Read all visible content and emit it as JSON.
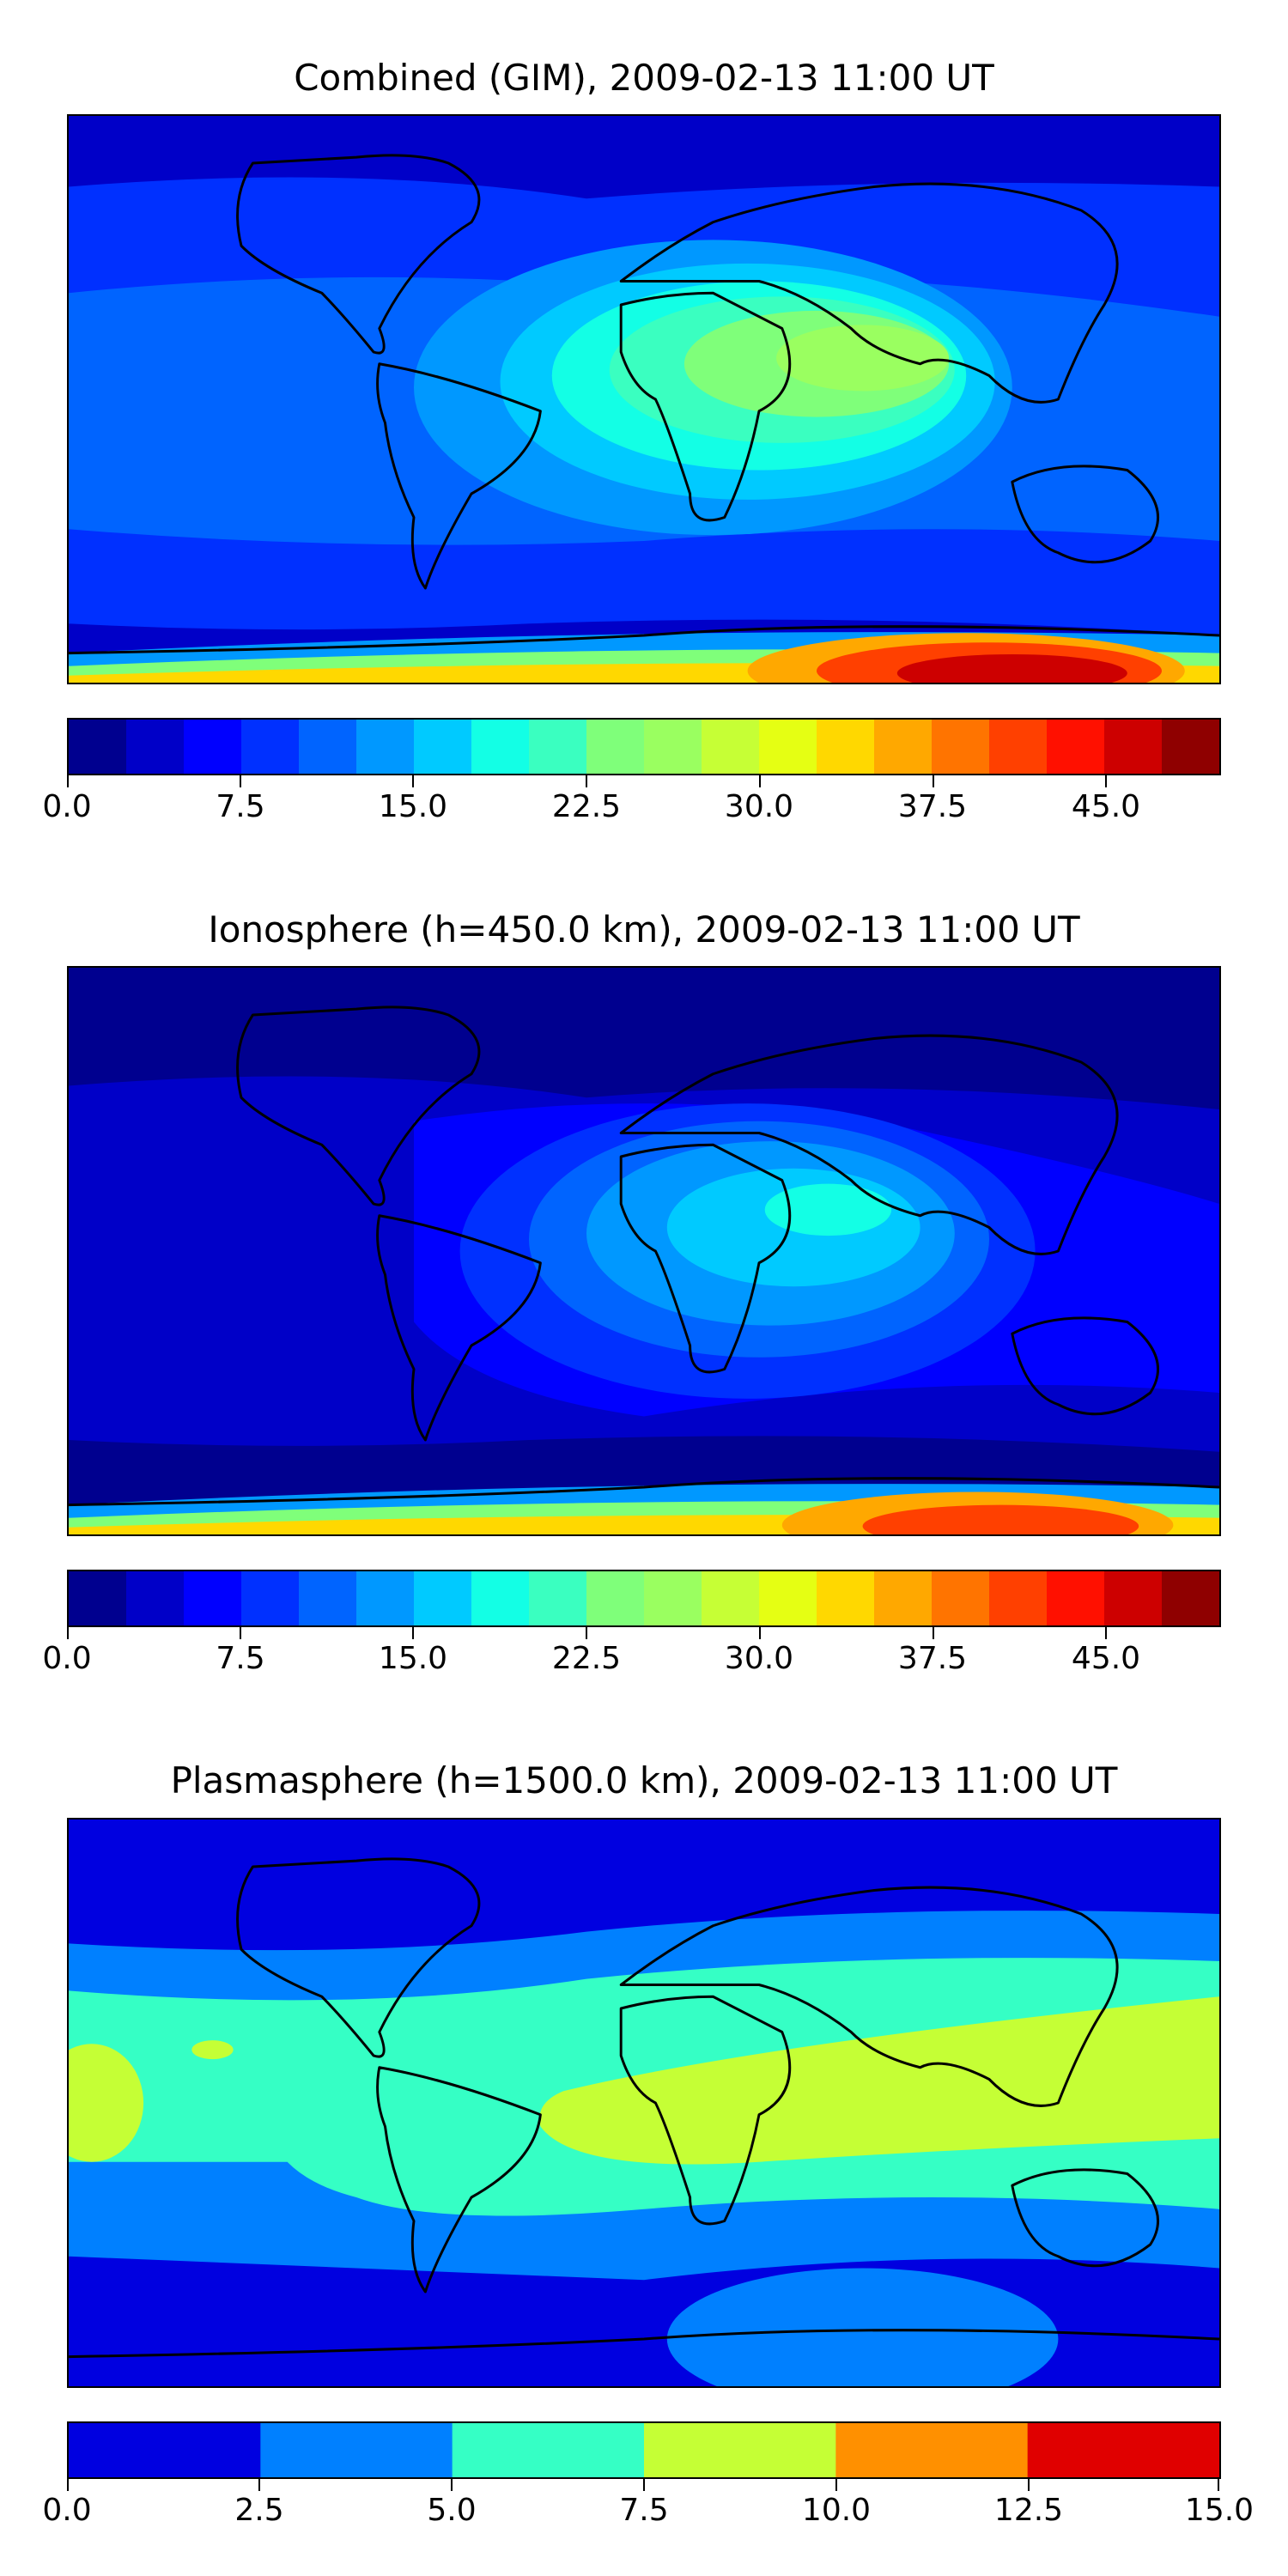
{
  "panels": [
    {
      "title": "Combined (GIM), 2009-02-13 11:00 UT",
      "colorbar": {
        "min": 0,
        "max": 50,
        "levels": 20,
        "colors": [
          "#00008f",
          "#0000c8",
          "#0000ff",
          "#0030ff",
          "#0064ff",
          "#0098ff",
          "#00caff",
          "#13ffe5",
          "#3affc0",
          "#7fff7a",
          "#9aff60",
          "#c6ff35",
          "#e5ff13",
          "#ffd800",
          "#ffa800",
          "#ff7400",
          "#ff4000",
          "#ff1000",
          "#cd0000",
          "#8f0000"
        ],
        "tick_values": [
          0.0,
          7.5,
          15.0,
          22.5,
          30.0,
          37.5,
          45.0
        ],
        "tick_labels": [
          "0.0",
          "7.5",
          "15.0",
          "22.5",
          "30.0",
          "37.5",
          "45.0"
        ]
      }
    },
    {
      "title": "Ionosphere  (h=450.0 km), 2009-02-13 11:00 UT",
      "colorbar": {
        "min": 0,
        "max": 50,
        "levels": 20,
        "colors": [
          "#00008f",
          "#0000c8",
          "#0000ff",
          "#0030ff",
          "#0064ff",
          "#0098ff",
          "#00caff",
          "#13ffe5",
          "#3affc0",
          "#7fff7a",
          "#9aff60",
          "#c6ff35",
          "#e5ff13",
          "#ffd800",
          "#ffa800",
          "#ff7400",
          "#ff4000",
          "#ff1000",
          "#cd0000",
          "#8f0000"
        ],
        "tick_values": [
          0.0,
          7.5,
          15.0,
          22.5,
          30.0,
          37.5,
          45.0
        ],
        "tick_labels": [
          "0.0",
          "7.5",
          "15.0",
          "22.5",
          "30.0",
          "37.5",
          "45.0"
        ]
      }
    },
    {
      "title": "Plasmasphere (h=1500.0 km), 2009-02-13 11:00 UT",
      "colorbar": {
        "min": 0,
        "max": 15,
        "levels": 6,
        "colors": [
          "#0000e0",
          "#0080ff",
          "#35ffc5",
          "#c5ff35",
          "#ff9000",
          "#e00000"
        ],
        "tick_values": [
          0.0,
          2.5,
          5.0,
          7.5,
          10.0,
          12.5,
          15.0
        ],
        "tick_labels": [
          "0.0",
          "2.5",
          "5.0",
          "7.5",
          "10.0",
          "12.5",
          "15.0"
        ]
      }
    }
  ]
}
